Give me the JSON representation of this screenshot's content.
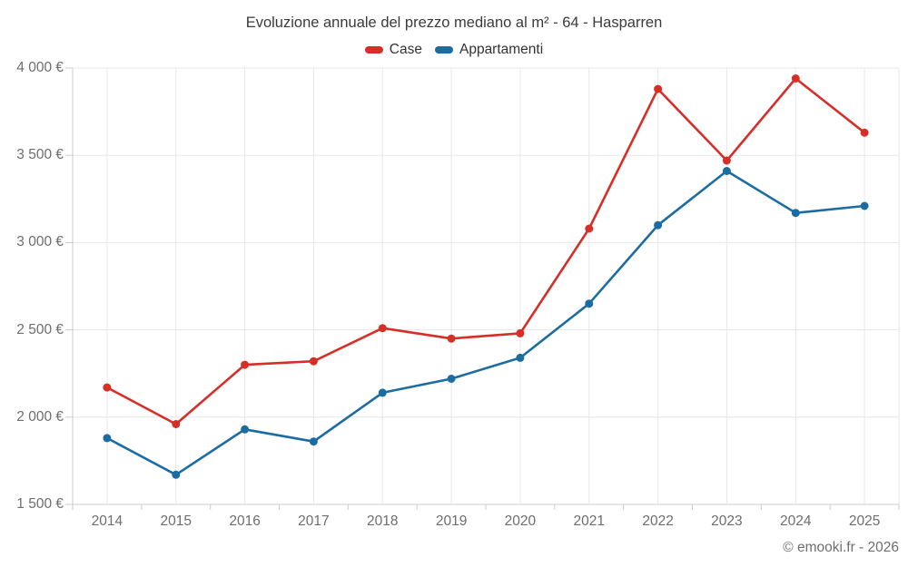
{
  "title": "Evoluzione annuale del prezzo mediano al m² - 64 - Hasparren",
  "copyright": "© emooki.fr - 2026",
  "legend": {
    "items": [
      {
        "label": "Case",
        "color": "#d62f28"
      },
      {
        "label": "Appartamenti",
        "color": "#1b6ca3"
      }
    ]
  },
  "chart_data": {
    "type": "line",
    "title": "Evoluzione annuale del prezzo mediano al m² - 64 - Hasparren",
    "categories": [
      "2014",
      "2015",
      "2016",
      "2017",
      "2018",
      "2019",
      "2020",
      "2021",
      "2022",
      "2023",
      "2024",
      "2025"
    ],
    "series": [
      {
        "name": "Case",
        "color": "#d62f28",
        "values": [
          2170,
          1960,
          2300,
          2320,
          2510,
          2450,
          2480,
          3080,
          3880,
          3470,
          3940,
          3630
        ]
      },
      {
        "name": "Appartamenti",
        "color": "#1b6ca3",
        "values": [
          1880,
          1670,
          1930,
          1860,
          2140,
          2220,
          2340,
          2650,
          3100,
          3410,
          3170,
          3210
        ]
      }
    ],
    "xlabel": "",
    "ylabel": "",
    "unit": "€",
    "ylim": [
      1500,
      4000
    ],
    "y_ticks": [
      1500,
      2000,
      2500,
      3000,
      3500,
      4000
    ],
    "y_tick_labels": [
      "1 500 €",
      "2 000 €",
      "2 500 €",
      "3 000 €",
      "3 500 €",
      "4 000 €"
    ],
    "grid": true,
    "legend_position": "top"
  },
  "colors": {
    "grid": "#e7e7e7",
    "axis": "#cccccc",
    "title_text": "#3b3b3b",
    "label_text": "#6e6e6e",
    "background": "#ffffff"
  }
}
